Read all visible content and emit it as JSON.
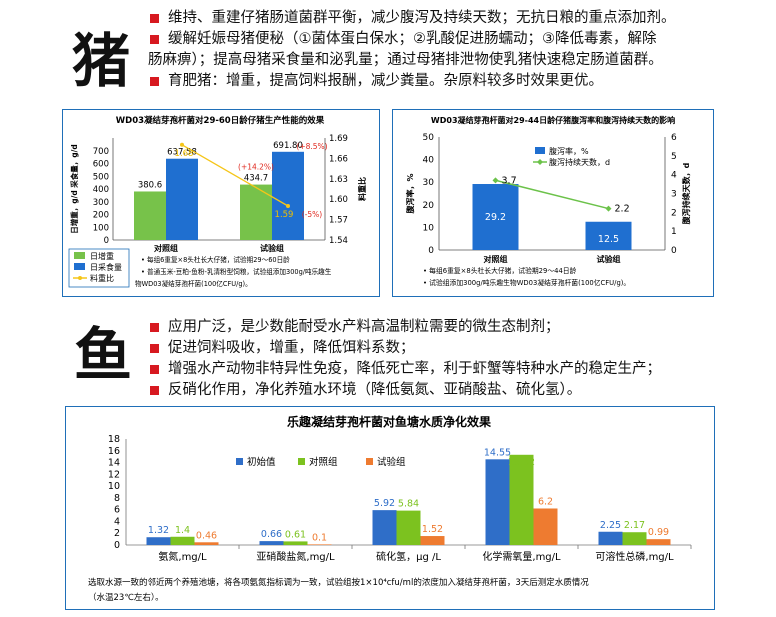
{
  "pig": {
    "char": "猪",
    "line1": "维持、重建仔猪肠道菌群平衡，减少腹泻及持续天数；无抗日粮的重点添加剂。",
    "line2a": "缓解妊娠母猪便秘（①菌体蛋白保水；②乳酸促进肠蠕动；③降低毒素，解除",
    "line2b": "肠麻痹）；提高母猪采食量和泌乳量；通过母猪排泄物使乳猪快速稳定肠道菌群。",
    "line3": "育肥猪：增重，提高饲料报酬，减少粪量。杂原料较多时效果更优。"
  },
  "fish": {
    "char": "鱼",
    "line1": "应用广泛，是少数能耐受水产料高温制粒需要的微生态制剂；",
    "line2": "促进饲料吸收，增重，降低饵料系数；",
    "line3": "增强水产动物非特异性免疫，降低死亡率，利于虾蟹等特种水产的稳定生产；",
    "line4": "反硝化作用，净化养殖水环境（降低氨氮、亚硝酸盐、硫化氢）。"
  },
  "chart_data": [
    {
      "type": "bar",
      "title": "WD03凝结芽孢杆菌对29-60日龄仔猪生产性能的效果",
      "categories": [
        "对照组",
        "试验组"
      ],
      "series": [
        {
          "name": "日增重",
          "values": [
            380.6,
            434.7
          ],
          "color": "#77c24a"
        },
        {
          "name": "日采食量",
          "values": [
            637.58,
            691.8
          ],
          "color": "#1f6fd0"
        },
        {
          "name": "料重比",
          "values": [
            1.68,
            1.59
          ],
          "color": "#f5c518",
          "type": "line",
          "axis": "right"
        }
      ],
      "value_labels": {
        "日增重": [
          "380.6",
          "434.7"
        ],
        "日采食量": [
          "637.58",
          "691.80"
        ],
        "料重比": [
          "1.68",
          "1.59"
        ]
      },
      "annotations": [
        "(+14.2%)",
        "(+8.5%)",
        "(-5%)"
      ],
      "ylabel_left": "日增重，g/d    采食量，g/d",
      "ylabel_right": "料重比",
      "ylim_left": [
        0,
        800
      ],
      "yticks_left": [
        "0",
        "100",
        "200",
        "300",
        "400",
        "500",
        "600",
        "700"
      ],
      "ylim_right": [
        1.54,
        1.69
      ],
      "yticks_right": [
        "1.54",
        "1.57",
        "1.60",
        "1.63",
        "1.66",
        "1.69"
      ],
      "legend": [
        "日增重",
        "日采食量",
        "料重比"
      ],
      "notes": [
        "每组6重复×8头杜长大仔猪，试验期29～60日龄",
        "普通玉米-豆粕-鱼粉-乳清粉型饲粮，试验组添加300g/吨乐趣生物WD03凝结芽孢杆菌(100亿CFU/g)。"
      ]
    },
    {
      "type": "bar",
      "title": "WD03凝结芽孢杆菌对29-44日龄仔猪腹泻率和腹泻持续天数的影响",
      "categories": [
        "对照组",
        "试验组"
      ],
      "series": [
        {
          "name": "腹泻率，%",
          "values": [
            29.2,
            12.5
          ],
          "color": "#1f6fd0"
        },
        {
          "name": "腹泻持续天数，d",
          "values": [
            3.7,
            2.2
          ],
          "color": "#6cc24a",
          "type": "line",
          "axis": "right"
        }
      ],
      "ylabel_left": "腹泻率，%",
      "ylabel_right": "腹泻持续天数，d",
      "ylim_left": [
        0,
        50
      ],
      "yticks_left": [
        "0",
        "10",
        "20",
        "30",
        "40",
        "50"
      ],
      "ylim_right": [
        0,
        6
      ],
      "yticks_right": [
        "0",
        "1",
        "2",
        "3",
        "4",
        "5",
        "6"
      ],
      "legend": [
        "腹泻率，%",
        "腹泻持续天数，d"
      ],
      "notes": [
        "每组6重复×8头杜长大仔猪，试验期29～44日龄",
        "试验组添加300g/吨乐趣生物WD03凝结芽孢杆菌(100亿CFU/g)。"
      ]
    },
    {
      "type": "bar",
      "title": "乐趣凝结芽孢杆菌对鱼塘水质净化效果",
      "categories": [
        "氨氮,mg/L",
        "亚硝酸盐氮,mg/L",
        "硫化氢，μg /L",
        "化学需氧量,mg/L",
        "可溶性总磷,mg/L"
      ],
      "series": [
        {
          "name": "初始值",
          "values": [
            1.32,
            0.66,
            5.92,
            14.55,
            2.25
          ],
          "labels": [
            "1.32",
            "0.66",
            "5.92",
            "14.55",
            "2.25"
          ],
          "color": "#2f6ec8"
        },
        {
          "name": "对照组",
          "values": [
            1.4,
            0.61,
            5.84,
            15.32,
            2.17
          ],
          "labels": [
            "1.4",
            "0.61",
            "5.84",
            "15.32",
            "2.17"
          ],
          "color": "#7cc21f"
        },
        {
          "name": "试验组",
          "values": [
            0.46,
            0.1,
            1.52,
            6.2,
            0.99
          ],
          "labels": [
            "0.46",
            "0.1",
            "1.52",
            "6.2",
            "0.99"
          ],
          "color": "#ee7b30"
        }
      ],
      "ylim": [
        0,
        18
      ],
      "yticks": [
        "0",
        "2",
        "4",
        "6",
        "8",
        "10",
        "12",
        "14",
        "16",
        "18"
      ],
      "legend": [
        "初始值",
        "对照组",
        "试验组"
      ],
      "note1": "选取水源一致的邻近两个养殖池塘，将各项氨氮指标调为一致，试验组按1×10⁴cfu/ml的浓度加入凝结芽孢杆菌，3天后测定水质情况",
      "note2": "（水温23℃左右）。"
    }
  ]
}
